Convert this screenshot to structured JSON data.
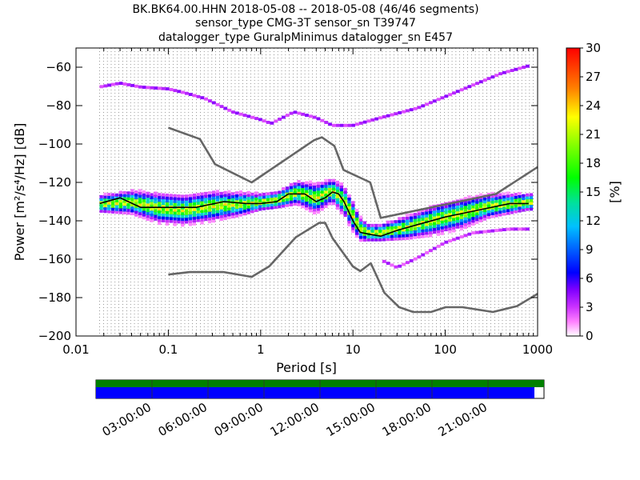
{
  "titles": [
    "BK.BK64.00.HHN   2018-05-08 -- 2018-05-08  (46/46 segments)",
    "sensor_type CMG-3T sensor_sn T39747",
    "datalogger_type GuralpMinimus datalogger_sn E457"
  ],
  "chart_data": {
    "type": "heatmap",
    "xlabel": "Period [s]",
    "ylabel": "Power [m²/s⁴/Hz] [dB]",
    "xscale": "log",
    "xlim": [
      0.01,
      1000
    ],
    "ylim": [
      -200,
      -50
    ],
    "x_ticks": [
      0.01,
      0.1,
      1,
      10,
      100,
      1000
    ],
    "x_tick_labels": [
      "0.01",
      "0.1",
      "1",
      "10",
      "100",
      "1000"
    ],
    "y_ticks": [
      -200,
      -180,
      -160,
      -140,
      -120,
      -100,
      -80,
      -60
    ],
    "y_tick_labels": [
      "−200",
      "−180",
      "−160",
      "−140",
      "−120",
      "−100",
      "−80",
      "−60"
    ],
    "grid": "dotted vertical lines at period bins",
    "colorbar": {
      "label": "[%]",
      "range": [
        0,
        30
      ],
      "ticks": [
        "0",
        "3",
        "6",
        "9",
        "12",
        "15",
        "18",
        "21",
        "24",
        "27",
        "30"
      ]
    },
    "nhnm": {
      "x": [
        0.1,
        0.22,
        0.32,
        0.8,
        3.8,
        4.6,
        6.3,
        7.9,
        15.4,
        20,
        354.8,
        1000
      ],
      "y": [
        -91.5,
        -97.4,
        -110.5,
        -120,
        -98,
        -96.5,
        -101,
        -113.5,
        -120,
        -138.5,
        -126,
        -112
      ]
    },
    "nlnm": {
      "x": [
        0.1,
        0.17,
        0.4,
        0.8,
        1.24,
        2.4,
        4.3,
        5,
        6,
        10,
        12,
        15.6,
        21.9,
        31.6,
        45,
        70,
        101,
        154,
        328,
        600,
        1000
      ],
      "y": [
        -168,
        -166.7,
        -166.7,
        -169.2,
        -163.7,
        -148.6,
        -141.1,
        -141.1,
        -149,
        -163.8,
        -166.2,
        -162.1,
        -177.5,
        -185,
        -187.5,
        -187.5,
        -185,
        -185,
        -187.5,
        -184.4,
        -178
      ]
    },
    "median": {
      "x": [
        0.018,
        0.03,
        0.05,
        0.1,
        0.2,
        0.4,
        0.7,
        1,
        1.5,
        2,
        3,
        4,
        5,
        6,
        7,
        8,
        10,
        12,
        15,
        20,
        30,
        50,
        100,
        200,
        500,
        800
      ],
      "y": [
        -131,
        -128,
        -133,
        -133,
        -133,
        -130,
        -131,
        -131,
        -130,
        -126,
        -126,
        -130,
        -128,
        -125,
        -126,
        -130,
        -140,
        -146,
        -147,
        -148,
        -145,
        -142,
        -138,
        -135,
        -131,
        -131
      ]
    },
    "psd_bands": [
      {
        "x": [
          0.018,
          0.04,
          0.08,
          0.15,
          0.3,
          0.6,
          1,
          1.5,
          2.5,
          4,
          6,
          8,
          10,
          12,
          15,
          20,
          40,
          80,
          150,
          300,
          800
        ],
        "center": [
          -132,
          -131,
          -134,
          -135,
          -133,
          -132,
          -131,
          -130,
          -126,
          -129,
          -125,
          -130,
          -138,
          -145,
          -147,
          -147,
          -144,
          -140,
          -137,
          -133,
          -131
        ],
        "spread": [
          3,
          4,
          5,
          5,
          5,
          4,
          3,
          3,
          4,
          5,
          4,
          5,
          5,
          4,
          3,
          3,
          4,
          5,
          5,
          4,
          3
        ]
      }
    ],
    "upper_trace": {
      "x": [
        0.018,
        0.03,
        0.05,
        0.1,
        0.15,
        0.25,
        0.5,
        1,
        1.3,
        2.3,
        4,
        6,
        10,
        20,
        50,
        100,
        200,
        400,
        800
      ],
      "y": [
        -71,
        -69,
        -71,
        -72,
        -74,
        -77,
        -84,
        -88,
        -90,
        -84,
        -87,
        -91,
        -91,
        -87,
        -82,
        -76,
        -70,
        -64,
        -60
      ]
    },
    "lower_trace": {
      "x": [
        20,
        30,
        50,
        100,
        200,
        500,
        800
      ],
      "y": [
        -161,
        -165,
        -160,
        -152,
        -147,
        -145,
        -145
      ]
    }
  },
  "timeline": {
    "tick_labels": [
      "03:00:00",
      "06:00:00",
      "09:00:00",
      "12:00:00",
      "15:00:00",
      "18:00:00",
      "21:00:00"
    ],
    "data_color": "#0000ff",
    "coverage_color": "#008000"
  }
}
